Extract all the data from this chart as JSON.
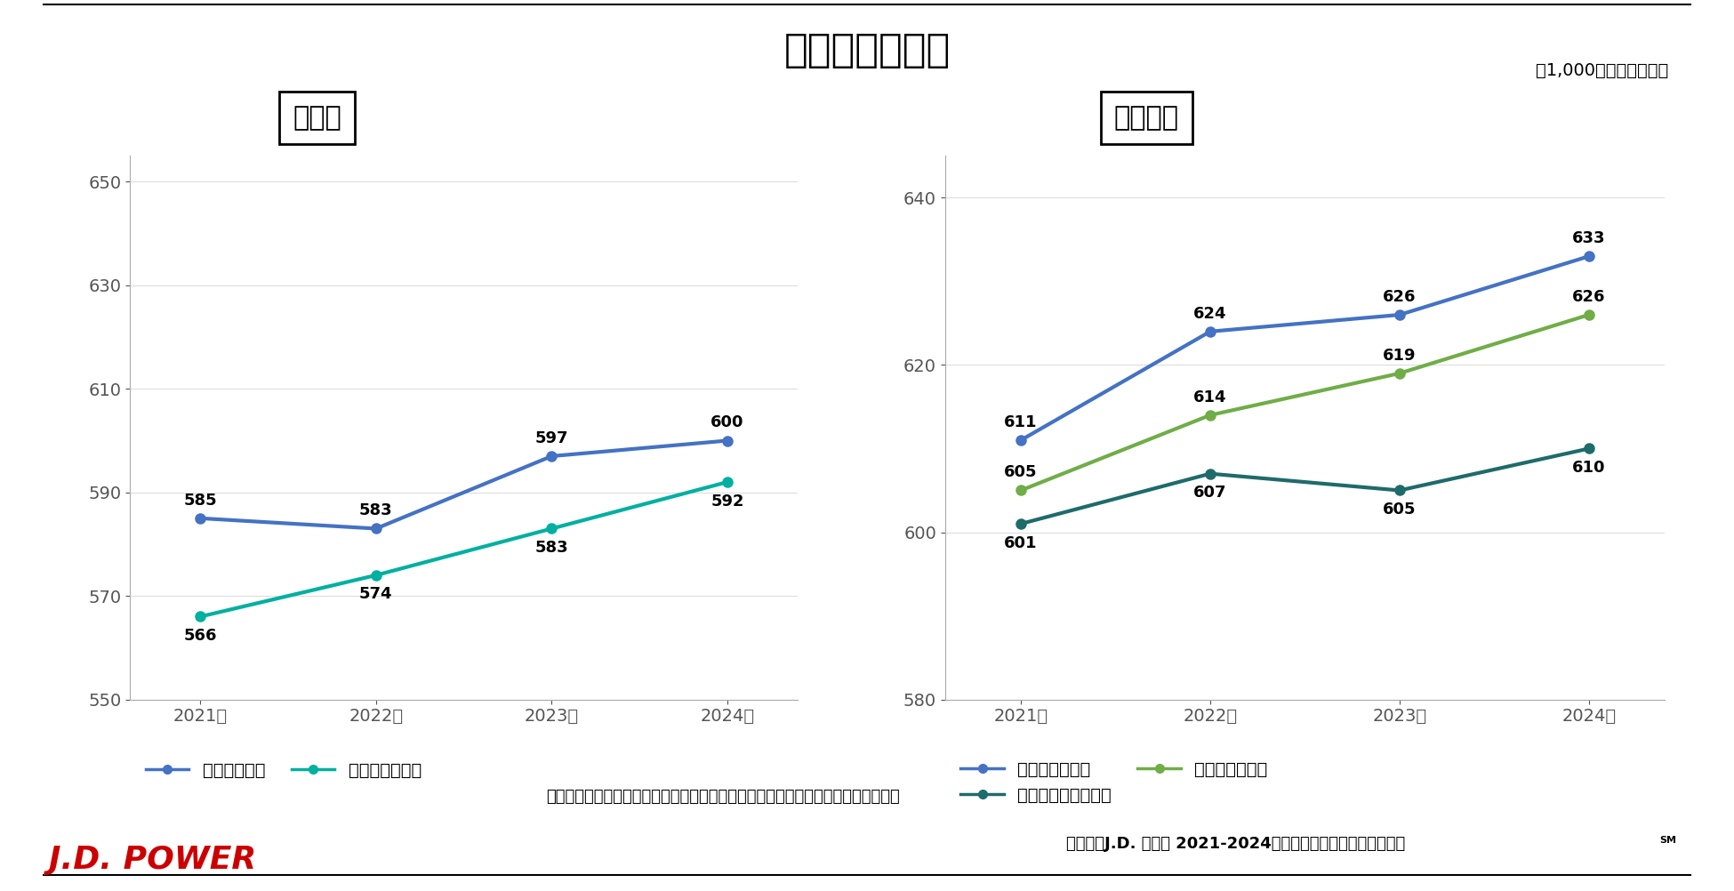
{
  "title": "総合満足度推移",
  "subtitle": "（1,000ポイント満点）",
  "left_panel_title": "対面系",
  "right_panel_title": "ネット系",
  "years": [
    "2021年",
    "2022年",
    "2023年",
    "2024年"
  ],
  "left_series": {
    "対面証券部門": {
      "values": [
        585,
        583,
        597,
        600
      ],
      "color": "#4472C4",
      "linewidth": 3
    },
    "全国系銀行部門": {
      "values": [
        566,
        574,
        583,
        592
      ],
      "color": "#00B0A0",
      "linewidth": 3
    }
  },
  "left_ylim": [
    550,
    655
  ],
  "left_yticks": [
    550,
    570,
    590,
    610,
    630,
    650
  ],
  "right_series": {
    "ネット証券部門": {
      "values": [
        611,
        624,
        626,
        633
      ],
      "color": "#4472C4",
      "linewidth": 3
    },
    "スマホ専業証券部門": {
      "values": [
        601,
        607,
        605,
        610
      ],
      "color": "#1E6B6B",
      "linewidth": 3
    },
    "ネット銀行部門": {
      "values": [
        605,
        614,
        619,
        626
      ],
      "color": "#70AD47",
      "linewidth": 3
    }
  },
  "right_ylim": [
    580,
    645
  ],
  "right_yticks": [
    580,
    600,
    620,
    640
  ],
  "footnote": "＊対面系とネット系では顧客満足度構造が異なるためスケールを統一していません",
  "source": "出典：　J.D. パワー 2021-2024年個人資産運用顧客満足度調査",
  "source_superscript": "SM",
  "jdpower_text": "J.D. POWER",
  "jdpower_color": "#CC0000",
  "background_color": "#FFFFFF",
  "title_fontsize": 32,
  "subtitle_fontsize": 14,
  "panel_title_fontsize": 22,
  "axis_label_fontsize": 14,
  "data_label_fontsize": 13,
  "legend_fontsize": 14,
  "footnote_fontsize": 13,
  "source_fontsize": 13,
  "jdpower_fontsize": 26
}
